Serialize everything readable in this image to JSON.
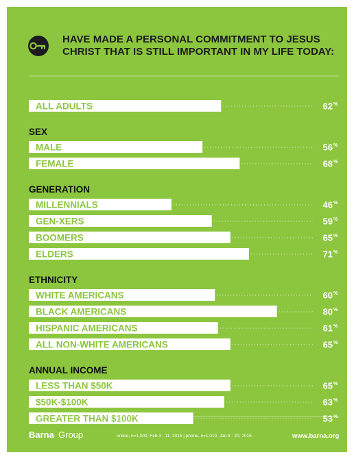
{
  "title_lines": [
    "HAVE MADE A PERSONAL COMMITMENT TO JESUS",
    "CHRIST THAT IS STILL IMPORTANT IN MY LIFE TODAY:"
  ],
  "icon": "key-icon",
  "colors": {
    "background": "#8cc63f",
    "bar": "#ffffff",
    "text_dark": "#1c1c1c",
    "icon_circle": "#1c1c1c"
  },
  "footer": {
    "brand_bold": "Barna",
    "brand_regular": "Group",
    "note": "online, n=1,000, Feb 3 - 11, 2015   |   phone, n=1,010, Jan 8 - 20, 2015",
    "url": "www.barna.org"
  },
  "chart_data": {
    "type": "bar",
    "orientation": "horizontal",
    "unit": "%",
    "xlim": [
      0,
      100
    ],
    "groups": [
      {
        "name": "",
        "categories": [
          "ALL ADULTS"
        ],
        "values": [
          62
        ]
      },
      {
        "name": "SEX",
        "categories": [
          "MALE",
          "FEMALE"
        ],
        "values": [
          56,
          68
        ]
      },
      {
        "name": "GENERATION",
        "categories": [
          "MILLENNIALS",
          "GEN-XERS",
          "BOOMERS",
          "ELDERS"
        ],
        "values": [
          46,
          59,
          65,
          71
        ]
      },
      {
        "name": "ETHNICITY",
        "categories": [
          "WHITE AMERICANS",
          "BLACK AMERICANS",
          "HISPANIC AMERICANS",
          "ALL NON-WHITE AMERICANS"
        ],
        "values": [
          60,
          80,
          61,
          65
        ]
      },
      {
        "name": "ANNUAL INCOME",
        "categories": [
          "LESS THAN $50K",
          "$50K-$100K",
          "GREATER THAN $100K"
        ],
        "values": [
          65,
          63,
          53
        ]
      }
    ]
  }
}
